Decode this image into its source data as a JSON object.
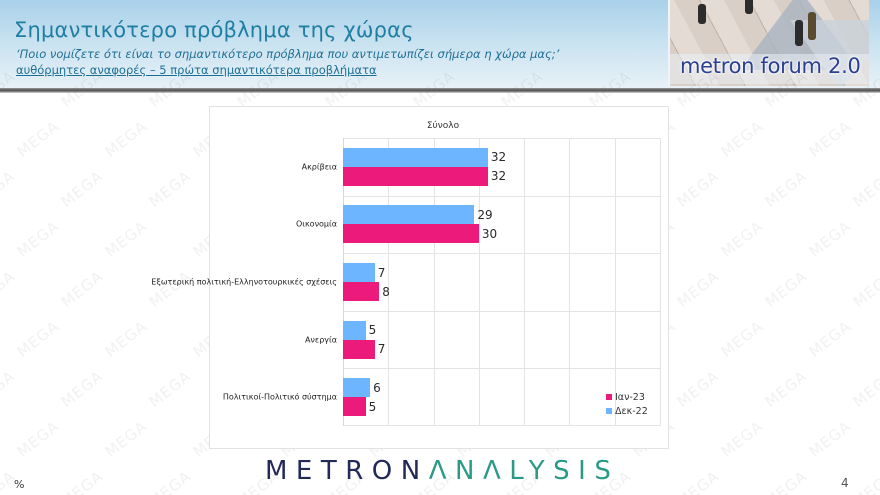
{
  "header": {
    "title": "Σημαντικότερο πρόβλημα της χώρας",
    "subtitle": "‘Ποιο νομίζετε ότι  είναι το σημαντικότερο πρόβλημα που αντιμετωπίζει σήμερα η χώρα μας;’",
    "subnote": "αυθόρμητες αναφορές – 5 πρώτα σημαντικότερα προβλήματα",
    "forum_logo_text": "metron forum 2.0"
  },
  "watermark": "MEGA",
  "chart_data": {
    "type": "bar",
    "orientation": "horizontal",
    "title": "Σύνολο",
    "categories": [
      "Ακρίβεια",
      "Οικονομία",
      "Εξωτερική πολιτική-Ελληνοτουρκικές σχέσεις",
      "Ανεργία",
      "Πολιτικοί-Πολιτικό σύστημα"
    ],
    "series": [
      {
        "name": "Δεκ-22",
        "color": "#6db6ff",
        "values": [
          32,
          29,
          7,
          5,
          6
        ]
      },
      {
        "name": "Ιαν-23",
        "color": "#ec1a7b",
        "values": [
          32,
          30,
          8,
          7,
          5
        ]
      }
    ],
    "xlabel": "",
    "ylabel": "",
    "xlim": [
      0,
      70
    ],
    "grid": true,
    "data_labels": true,
    "legend_position": "bottom-right",
    "legend": [
      "Ιαν-23",
      "Δεκ-22"
    ],
    "unit": "%"
  },
  "footer": {
    "unit_label": "%",
    "brand_part1": "METRON",
    "brand_part2": "ΛNΛLYSIS",
    "page_number": "4"
  }
}
